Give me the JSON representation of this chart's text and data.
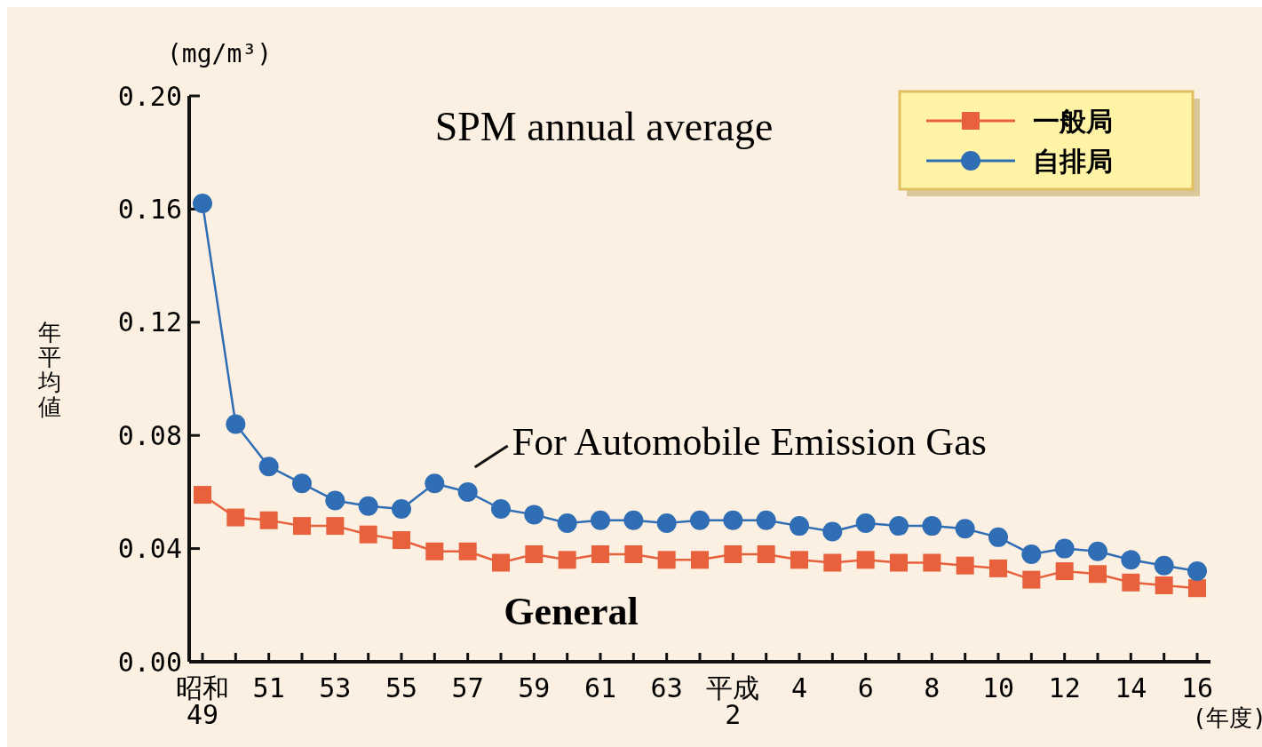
{
  "chart_data": {
    "type": "line",
    "title": "SPM annual average",
    "ylabel": "年平均値",
    "xlabel": "(年度)",
    "annotations": [
      "(mg/m³)",
      {
        "text": "For Automobile Emission Gas",
        "x": "57",
        "y": 0.06
      },
      "General"
    ],
    "categories": [
      "昭和49",
      null,
      "51",
      null,
      "53",
      null,
      "55",
      null,
      "57",
      null,
      "59",
      null,
      "61",
      null,
      "63",
      null,
      "平成2",
      null,
      "4",
      null,
      "6",
      null,
      "8",
      null,
      "10",
      null,
      "12",
      null,
      "14",
      null,
      "16"
    ],
    "series": [
      {
        "name": "一般局",
        "color": "#e8603c",
        "marker": "square",
        "values": [
          0.059,
          0.051,
          0.05,
          0.048,
          0.048,
          0.045,
          0.043,
          0.039,
          0.039,
          0.035,
          0.038,
          0.036,
          0.038,
          0.038,
          0.036,
          0.036,
          0.038,
          0.038,
          0.036,
          0.035,
          0.036,
          0.035,
          0.035,
          0.034,
          0.033,
          0.029,
          0.032,
          0.031,
          0.028,
          0.027,
          0.026
        ]
      },
      {
        "name": "自排局",
        "color": "#2f6db5",
        "marker": "circle",
        "values": [
          0.162,
          0.084,
          0.069,
          0.063,
          0.057,
          0.055,
          0.054,
          0.063,
          0.06,
          0.054,
          0.052,
          0.049,
          0.05,
          0.05,
          0.049,
          0.05,
          0.05,
          0.05,
          0.048,
          0.046,
          0.049,
          0.048,
          0.048,
          0.047,
          0.044,
          0.038,
          0.04,
          0.039,
          0.036,
          0.034,
          0.032
        ]
      }
    ],
    "ylim": [
      0,
      0.2
    ],
    "yticks": [
      {
        "value": 0,
        "label": "0.00"
      },
      {
        "value": 0.04,
        "label": "0.04"
      },
      {
        "value": 0.08,
        "label": "0.08"
      },
      {
        "value": 0.12,
        "label": "0.12"
      },
      {
        "value": 0.16,
        "label": "0.16"
      },
      {
        "value": 0.2,
        "label": "0.20"
      }
    ],
    "legend": "top right",
    "line_style": "solid"
  }
}
